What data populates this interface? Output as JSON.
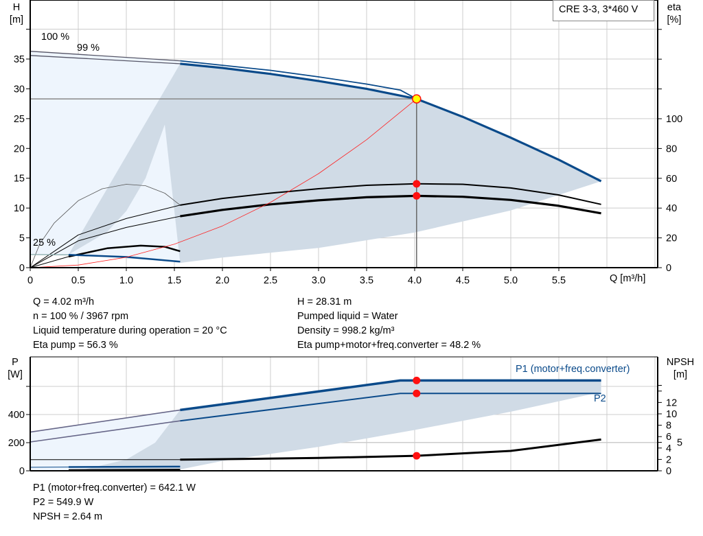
{
  "colors": {
    "curve_blue": "#0a4a8a",
    "shade_gray": "#d0dbe6",
    "shade_light": "#eef5fd",
    "system_red": "#ff2020",
    "point_red": "#ff1010",
    "point_yellow": "#ffff00",
    "grid": "#cccccc"
  },
  "model_label": "CRE 3-3, 3*460 V",
  "chart_data": [
    {
      "type": "line",
      "axis_labels": {
        "left": [
          "H",
          "[m]"
        ],
        "right": [
          "eta",
          "[%]"
        ],
        "x": "Q [m³/h]"
      },
      "xlim": [
        0,
        6.5
      ],
      "ylim": [
        0,
        40
      ],
      "y2lim": [
        0,
        100
      ],
      "x_ticks": [
        "0",
        "0.5",
        "1.0",
        "1.5",
        "2.0",
        "2.5",
        "3.0",
        "3.5",
        "4.0",
        "4.5",
        "5.0",
        "5.5"
      ],
      "y_ticks": [
        "0",
        "5",
        "10",
        "15",
        "20",
        "25",
        "30",
        "35"
      ],
      "y2_ticks": [
        "0",
        "20",
        "40",
        "60",
        "80",
        "100"
      ],
      "grid": true,
      "curve_labels": [
        "100 %",
        "99 %",
        "25 %"
      ],
      "series": {
        "head_100": [
          [
            0,
            36.3
          ],
          [
            1.56,
            34.7
          ],
          [
            2.5,
            33.1
          ],
          [
            3.0,
            32.0
          ],
          [
            3.5,
            30.8
          ],
          [
            3.85,
            29.8
          ],
          [
            4.02,
            28.31
          ],
          [
            4.5,
            25.3
          ],
          [
            5.0,
            21.8
          ],
          [
            5.5,
            18.1
          ],
          [
            5.94,
            14.5
          ]
        ],
        "head_99": [
          [
            0,
            35.6
          ],
          [
            1.56,
            34.2
          ],
          [
            2.0,
            33.5
          ],
          [
            2.5,
            32.5
          ],
          [
            3.0,
            31.3
          ],
          [
            3.5,
            30.0
          ],
          [
            4.02,
            28.31
          ]
        ],
        "head_25": [
          [
            0,
            2.2
          ],
          [
            0.4,
            2.15
          ],
          [
            1.0,
            1.8
          ],
          [
            1.56,
            1.0
          ]
        ],
        "eta_pump_100": [
          [
            0,
            0
          ],
          [
            0.5,
            22
          ],
          [
            1.0,
            33
          ],
          [
            1.56,
            42
          ],
          [
            2.0,
            46.5
          ],
          [
            2.5,
            50
          ],
          [
            3.0,
            53
          ],
          [
            3.5,
            55.3
          ],
          [
            4.02,
            56.3
          ],
          [
            4.5,
            56
          ],
          [
            5.0,
            53.5
          ],
          [
            5.5,
            48.8
          ],
          [
            5.94,
            42.5
          ]
        ],
        "eta_total_100": [
          [
            0,
            0
          ],
          [
            0.5,
            18
          ],
          [
            1.0,
            27
          ],
          [
            1.56,
            34.5
          ],
          [
            2.0,
            38.8
          ],
          [
            2.5,
            42.5
          ],
          [
            3.0,
            45.2
          ],
          [
            3.5,
            47.3
          ],
          [
            4.02,
            48.2
          ],
          [
            4.5,
            47.6
          ],
          [
            5.0,
            45.5
          ],
          [
            5.5,
            41.5
          ],
          [
            5.94,
            36.5
          ]
        ],
        "eta_pump_25_arc": [
          [
            0,
            0
          ],
          [
            0.1,
            16
          ],
          [
            0.25,
            30
          ],
          [
            0.5,
            45
          ],
          [
            0.75,
            53
          ],
          [
            1.0,
            56
          ],
          [
            1.2,
            55
          ],
          [
            1.4,
            50
          ],
          [
            1.56,
            42
          ]
        ],
        "eta_25": [
          [
            0,
            0
          ],
          [
            0.4,
            7.4
          ],
          [
            0.8,
            13
          ],
          [
            1.15,
            14.8
          ],
          [
            1.4,
            14
          ],
          [
            1.56,
            11
          ]
        ],
        "system_curve": [
          [
            0,
            0
          ],
          [
            0.5,
            0.44
          ],
          [
            1.0,
            1.75
          ],
          [
            1.5,
            3.94
          ],
          [
            2.0,
            7.0
          ],
          [
            2.5,
            10.95
          ],
          [
            3.0,
            15.77
          ],
          [
            3.5,
            21.46
          ],
          [
            4.02,
            28.31
          ]
        ],
        "shade_bottom": [
          [
            5.94,
            14.5
          ],
          [
            5.0,
            9.6
          ],
          [
            4.0,
            5.9
          ],
          [
            3.0,
            3.3
          ],
          [
            2.0,
            1.7
          ],
          [
            1.56,
            0.8
          ]
        ],
        "shade_left": [
          [
            1.56,
            34.3
          ],
          [
            1.4,
            24
          ],
          [
            1.2,
            15
          ],
          [
            1.0,
            9.5
          ],
          [
            0.8,
            6
          ],
          [
            0.4,
            2.2
          ]
        ]
      },
      "operating_point": {
        "Q": 4.02,
        "H": 28.31,
        "eta_pump": 56.3,
        "eta_total": 48.2
      }
    },
    {
      "type": "line",
      "axis_labels": {
        "left": [
          "P",
          "[W]"
        ],
        "right": [
          "NPSH",
          "[m]"
        ]
      },
      "xlim": [
        0,
        6.5
      ],
      "ylim": [
        0,
        800
      ],
      "y2lim": [
        0,
        16
      ],
      "y_ticks": [
        "0",
        "200",
        "400"
      ],
      "y2_ticks": [
        "0",
        "2",
        "4",
        "5",
        "6",
        "8",
        "10",
        "12"
      ],
      "grid": true,
      "series_labels": [
        "P1 (motor+freq.converter)",
        "P2"
      ],
      "series": {
        "P1": [
          [
            0,
            275
          ],
          [
            1.56,
            432
          ],
          [
            3.85,
            642.1
          ],
          [
            5.94,
            642.1
          ]
        ],
        "P2": [
          [
            0,
            205
          ],
          [
            1.56,
            355
          ],
          [
            3.85,
            549.9
          ],
          [
            5.94,
            549.9
          ]
        ],
        "P1_25": [
          [
            0,
            25
          ],
          [
            0.4,
            27
          ],
          [
            1.56,
            30
          ]
        ],
        "P2_25": [
          [
            0.4,
            5
          ],
          [
            1.56,
            8
          ]
        ],
        "NPSH": [
          [
            0,
            1.95
          ],
          [
            1.56,
            1.95
          ],
          [
            3.0,
            2.25
          ],
          [
            4.02,
            2.64
          ],
          [
            5.0,
            3.5
          ],
          [
            5.94,
            5.5
          ]
        ],
        "shade_bottom": [
          [
            5.94,
            560
          ],
          [
            5.0,
            420
          ],
          [
            4.0,
            290
          ],
          [
            3.0,
            170
          ],
          [
            2.0,
            70
          ],
          [
            1.56,
            10
          ]
        ],
        "shade_left": [
          [
            1.56,
            432
          ],
          [
            1.3,
            200
          ],
          [
            1.0,
            80
          ],
          [
            0.5,
            0
          ]
        ]
      },
      "operating_point": {
        "Q": 4.02,
        "P1": 642.1,
        "P2": 549.9,
        "NPSH": 2.64
      }
    }
  ],
  "results_left": [
    "Q = 4.02 m³/h",
    "n = 100 % / 3967 rpm",
    "Liquid temperature during operation = 20 °C",
    "Eta pump = 56.3 %"
  ],
  "results_right": [
    "H = 28.31 m",
    "Pumped liquid = Water",
    "Density = 998.2 kg/m³",
    "Eta pump+motor+freq.converter = 48.2 %"
  ],
  "results_power": [
    "P1 (motor+freq.converter) = 642.1 W",
    "P2 = 549.9 W",
    "NPSH = 2.64 m"
  ]
}
